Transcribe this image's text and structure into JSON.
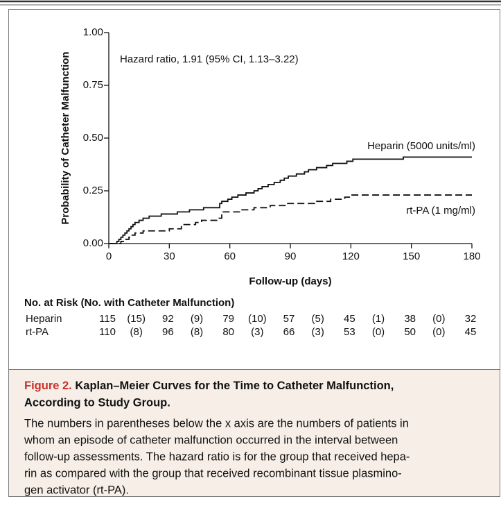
{
  "chart_data": {
    "type": "step",
    "step": "post",
    "annotation": "Hazard ratio, 1.91 (95% CI, 1.13–3.22)",
    "xlabel": "Follow-up (days)",
    "ylabel": "Probability of Catheter Malfunction",
    "xlim": [
      0,
      180
    ],
    "xticks": [
      0,
      30,
      60,
      90,
      120,
      150,
      180
    ],
    "ylim": [
      0,
      1
    ],
    "yticks": [
      {
        "value": 0,
        "label": "0.00"
      },
      {
        "value": 0.25,
        "label": "0.25"
      },
      {
        "value": 0.5,
        "label": "0.50"
      },
      {
        "value": 0.75,
        "label": "0.75"
      },
      {
        "value": 1,
        "label": "1.00"
      }
    ],
    "series": [
      {
        "name": "Heparin (5000 units/ml)",
        "color": "#111111",
        "dash": false,
        "x": [
          0,
          4,
          5,
          6,
          7,
          8,
          9,
          10,
          11,
          12,
          13,
          15,
          17,
          20,
          26,
          34,
          40,
          47,
          55,
          56,
          59,
          61,
          64,
          68,
          72,
          74,
          76,
          79,
          82,
          85,
          87,
          89,
          93,
          97,
          99,
          103,
          108,
          111,
          118,
          121,
          146,
          180
        ],
        "values": [
          0,
          0.01,
          0.02,
          0.03,
          0.04,
          0.05,
          0.06,
          0.07,
          0.08,
          0.09,
          0.1,
          0.11,
          0.12,
          0.13,
          0.14,
          0.15,
          0.16,
          0.17,
          0.19,
          0.2,
          0.21,
          0.22,
          0.23,
          0.24,
          0.25,
          0.26,
          0.27,
          0.28,
          0.29,
          0.3,
          0.31,
          0.32,
          0.33,
          0.34,
          0.35,
          0.36,
          0.37,
          0.38,
          0.39,
          0.4,
          0.41,
          0.41
        ]
      },
      {
        "name": "rt-PA (1 mg/ml)",
        "color": "#111111",
        "dash": true,
        "x": [
          0,
          6,
          8,
          10,
          11,
          13,
          17,
          30,
          36,
          43,
          46,
          54,
          56,
          66,
          72,
          80,
          88,
          102,
          110,
          117,
          120,
          180
        ],
        "values": [
          0,
          0.01,
          0.02,
          0.03,
          0.04,
          0.05,
          0.06,
          0.07,
          0.09,
          0.1,
          0.11,
          0.12,
          0.15,
          0.16,
          0.17,
          0.18,
          0.19,
          0.2,
          0.21,
          0.22,
          0.23,
          0.23
        ]
      }
    ],
    "risk_table": {
      "title": "No. at Risk (No. with Catheter Malfunction)",
      "rows": [
        {
          "name": "Heparin",
          "values": [
            115,
            92,
            79,
            57,
            45,
            38,
            32
          ],
          "event_labels": [
            "(15)",
            "(9)",
            "(10)",
            "(5)",
            "(1)",
            "(0)"
          ]
        },
        {
          "name": "rt-PA",
          "values": [
            110,
            96,
            80,
            66,
            53,
            50,
            45
          ],
          "event_labels": [
            "(8)",
            "(8)",
            "(3)",
            "(3)",
            "(0)",
            "(0)"
          ]
        }
      ]
    }
  },
  "caption": {
    "label": "Figure 2.",
    "title_lines": [
      "Kaplan–Meier Curves for the Time to Catheter Malfunction,",
      "According to Study Group."
    ],
    "body_lines": [
      "The numbers in parentheses below the x axis are the numbers of patients in",
      "whom an episode of catheter malfunction occurred in the interval between",
      "follow-up assessments. The hazard ratio is for the group that received hepa-",
      "rin as compared with the group that received recombinant tissue plasmino-",
      "gen activator (rt-PA)."
    ]
  }
}
